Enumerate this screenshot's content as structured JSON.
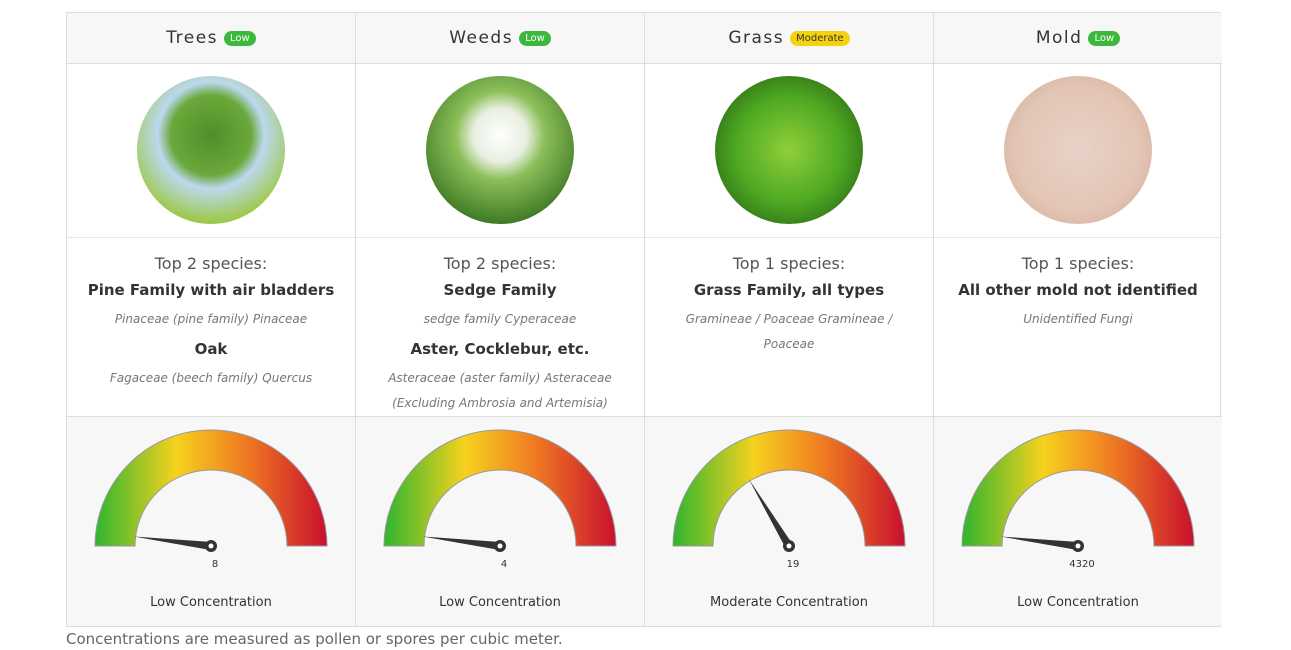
{
  "columns": [
    {
      "name": "Trees",
      "level": "Low",
      "badge_color": "#3cb93c",
      "top_label": "Top 2 species:",
      "species": [
        {
          "name": "Pine Family with air bladders",
          "latin": "Pinaceae (pine family) Pinaceae"
        },
        {
          "name": "Oak",
          "latin": "Fagaceae (beech family) Quercus"
        }
      ],
      "value": 8,
      "concentration": "Low Concentration"
    },
    {
      "name": "Weeds",
      "level": "Low",
      "badge_color": "#3cb93c",
      "top_label": "Top 2 species:",
      "species": [
        {
          "name": "Sedge Family",
          "latin": "sedge family Cyperaceae"
        },
        {
          "name": "Aster, Cocklebur, etc.",
          "latin": "Asteraceae (aster family) Asteraceae (Excluding Ambrosia and Artemisia)"
        }
      ],
      "value": 4,
      "concentration": "Low Concentration"
    },
    {
      "name": "Grass",
      "level": "Moderate",
      "badge_color": "#f5d20f",
      "top_label": "Top 1 species:",
      "species": [
        {
          "name": "Grass Family, all types",
          "latin": "Gramineae / Poaceae Gramineae / Poaceae"
        }
      ],
      "value": 19,
      "concentration": "Moderate Concentration"
    },
    {
      "name": "Mold",
      "level": "Low",
      "badge_color": "#3cb93c",
      "top_label": "Top 1 species:",
      "species": [
        {
          "name": "All other mold not identified",
          "latin": "Unidentified Fungi"
        }
      ],
      "value": 4320,
      "concentration": "Low Concentration"
    }
  ],
  "footer": "Concentrations are measured as pollen or spores per cubic meter."
}
